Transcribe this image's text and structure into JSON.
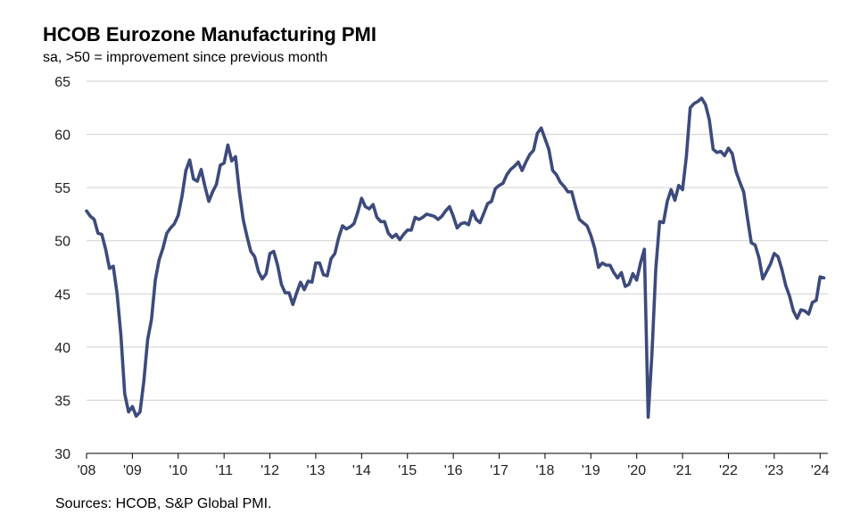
{
  "chart_data": {
    "type": "line",
    "title": "HCOB Eurozone Manufacturing PMI",
    "subtitle": "sa, >50 = improvement  since previous month",
    "source": "Sources: HCOB,  S&P Global PMI.",
    "xlabel": "",
    "ylabel": "",
    "ylim": [
      30,
      65
    ],
    "xlim": [
      2008.0,
      2024.17
    ],
    "ytick_labels": [
      "30",
      "35",
      "40",
      "45",
      "50",
      "55",
      "60",
      "65"
    ],
    "xtick_labels": [
      "'08",
      "'09",
      "'10",
      "'11",
      "'12",
      "'13",
      "'14",
      "'15",
      "'16",
      "'17",
      "'18",
      "'19",
      "'20",
      "'21",
      "'22",
      "'23",
      "'24"
    ],
    "grid": "horizontal",
    "line_color": "#3d4a7c",
    "series": [
      {
        "name": "HCOB Eurozone Manufacturing PMI",
        "x": [
          2008.0,
          2008.083,
          2008.167,
          2008.25,
          2008.333,
          2008.417,
          2008.5,
          2008.583,
          2008.667,
          2008.75,
          2008.833,
          2008.917,
          2009.0,
          2009.083,
          2009.167,
          2009.25,
          2009.333,
          2009.417,
          2009.5,
          2009.583,
          2009.667,
          2009.75,
          2009.833,
          2009.917,
          2010.0,
          2010.083,
          2010.167,
          2010.25,
          2010.333,
          2010.417,
          2010.5,
          2010.583,
          2010.667,
          2010.75,
          2010.833,
          2010.917,
          2011.0,
          2011.083,
          2011.167,
          2011.25,
          2011.333,
          2011.417,
          2011.5,
          2011.583,
          2011.667,
          2011.75,
          2011.833,
          2011.917,
          2012.0,
          2012.083,
          2012.167,
          2012.25,
          2012.333,
          2012.417,
          2012.5,
          2012.583,
          2012.667,
          2012.75,
          2012.833,
          2012.917,
          2013.0,
          2013.083,
          2013.167,
          2013.25,
          2013.333,
          2013.417,
          2013.5,
          2013.583,
          2013.667,
          2013.75,
          2013.833,
          2013.917,
          2014.0,
          2014.083,
          2014.167,
          2014.25,
          2014.333,
          2014.417,
          2014.5,
          2014.583,
          2014.667,
          2014.75,
          2014.833,
          2014.917,
          2015.0,
          2015.083,
          2015.167,
          2015.25,
          2015.333,
          2015.417,
          2015.5,
          2015.583,
          2015.667,
          2015.75,
          2015.833,
          2015.917,
          2016.0,
          2016.083,
          2016.167,
          2016.25,
          2016.333,
          2016.417,
          2016.5,
          2016.583,
          2016.667,
          2016.75,
          2016.833,
          2016.917,
          2017.0,
          2017.083,
          2017.167,
          2017.25,
          2017.333,
          2017.417,
          2017.5,
          2017.583,
          2017.667,
          2017.75,
          2017.833,
          2017.917,
          2018.0,
          2018.083,
          2018.167,
          2018.25,
          2018.333,
          2018.417,
          2018.5,
          2018.583,
          2018.667,
          2018.75,
          2018.833,
          2018.917,
          2019.0,
          2019.083,
          2019.167,
          2019.25,
          2019.333,
          2019.417,
          2019.5,
          2019.583,
          2019.667,
          2019.75,
          2019.833,
          2019.917,
          2020.0,
          2020.083,
          2020.167,
          2020.25,
          2020.333,
          2020.417,
          2020.5,
          2020.583,
          2020.667,
          2020.75,
          2020.833,
          2020.917,
          2021.0,
          2021.083,
          2021.167,
          2021.25,
          2021.333,
          2021.417,
          2021.5,
          2021.583,
          2021.667,
          2021.75,
          2021.833,
          2021.917,
          2022.0,
          2022.083,
          2022.167,
          2022.25,
          2022.333,
          2022.417,
          2022.5,
          2022.583,
          2022.667,
          2022.75,
          2022.833,
          2022.917,
          2023.0,
          2023.083,
          2023.167,
          2023.25,
          2023.333,
          2023.417,
          2023.5,
          2023.583,
          2023.667,
          2023.75,
          2023.833,
          2023.917,
          2024.0,
          2024.083
        ],
        "values": [
          52.8,
          52.3,
          52.0,
          50.7,
          50.6,
          49.2,
          47.4,
          47.6,
          45.0,
          41.1,
          35.6,
          33.9,
          34.4,
          33.5,
          33.9,
          36.8,
          40.7,
          42.6,
          46.3,
          48.2,
          49.3,
          50.7,
          51.2,
          51.6,
          52.4,
          54.2,
          56.6,
          57.6,
          55.8,
          55.6,
          56.7,
          55.1,
          53.7,
          54.6,
          55.3,
          57.1,
          57.3,
          59.0,
          57.5,
          57.9,
          54.6,
          52.0,
          50.4,
          49.0,
          48.5,
          47.1,
          46.4,
          46.9,
          48.8,
          49.0,
          47.7,
          45.9,
          45.1,
          45.1,
          44.0,
          45.1,
          46.1,
          45.4,
          46.2,
          46.1,
          47.9,
          47.9,
          46.8,
          46.7,
          48.3,
          48.8,
          50.3,
          51.4,
          51.1,
          51.3,
          51.6,
          52.7,
          54.0,
          53.2,
          53.0,
          53.4,
          52.2,
          51.8,
          51.8,
          50.7,
          50.3,
          50.6,
          50.1,
          50.6,
          51.0,
          51.0,
          52.2,
          52.0,
          52.2,
          52.5,
          52.4,
          52.3,
          52.0,
          52.3,
          52.8,
          53.2,
          52.3,
          51.2,
          51.6,
          51.7,
          51.5,
          52.8,
          52.0,
          51.7,
          52.6,
          53.5,
          53.7,
          54.9,
          55.2,
          55.4,
          56.2,
          56.7,
          57.0,
          57.4,
          56.6,
          57.4,
          58.1,
          58.5,
          60.1,
          60.6,
          59.6,
          58.6,
          56.6,
          56.2,
          55.5,
          55.1,
          54.6,
          54.6,
          53.2,
          52.0,
          51.7,
          51.4,
          50.5,
          49.3,
          47.5,
          47.9,
          47.7,
          47.7,
          47.0,
          46.5,
          47.0,
          45.7,
          45.9,
          46.9,
          46.3,
          47.9,
          49.2,
          33.4,
          39.4,
          47.4,
          51.8,
          51.7,
          53.7,
          54.8,
          53.8,
          55.2,
          54.8,
          57.9,
          62.5,
          62.9,
          63.1,
          63.4,
          62.8,
          61.4,
          58.6,
          58.3,
          58.4,
          58.0,
          58.7,
          58.2,
          56.5,
          55.5,
          54.6,
          52.1,
          49.8,
          49.6,
          48.4,
          46.4,
          47.1,
          47.8,
          48.8,
          48.5,
          47.3,
          45.8,
          44.8,
          43.4,
          42.7,
          43.5,
          43.4,
          43.1,
          44.2,
          44.4,
          46.6,
          46.5
        ]
      }
    ]
  }
}
